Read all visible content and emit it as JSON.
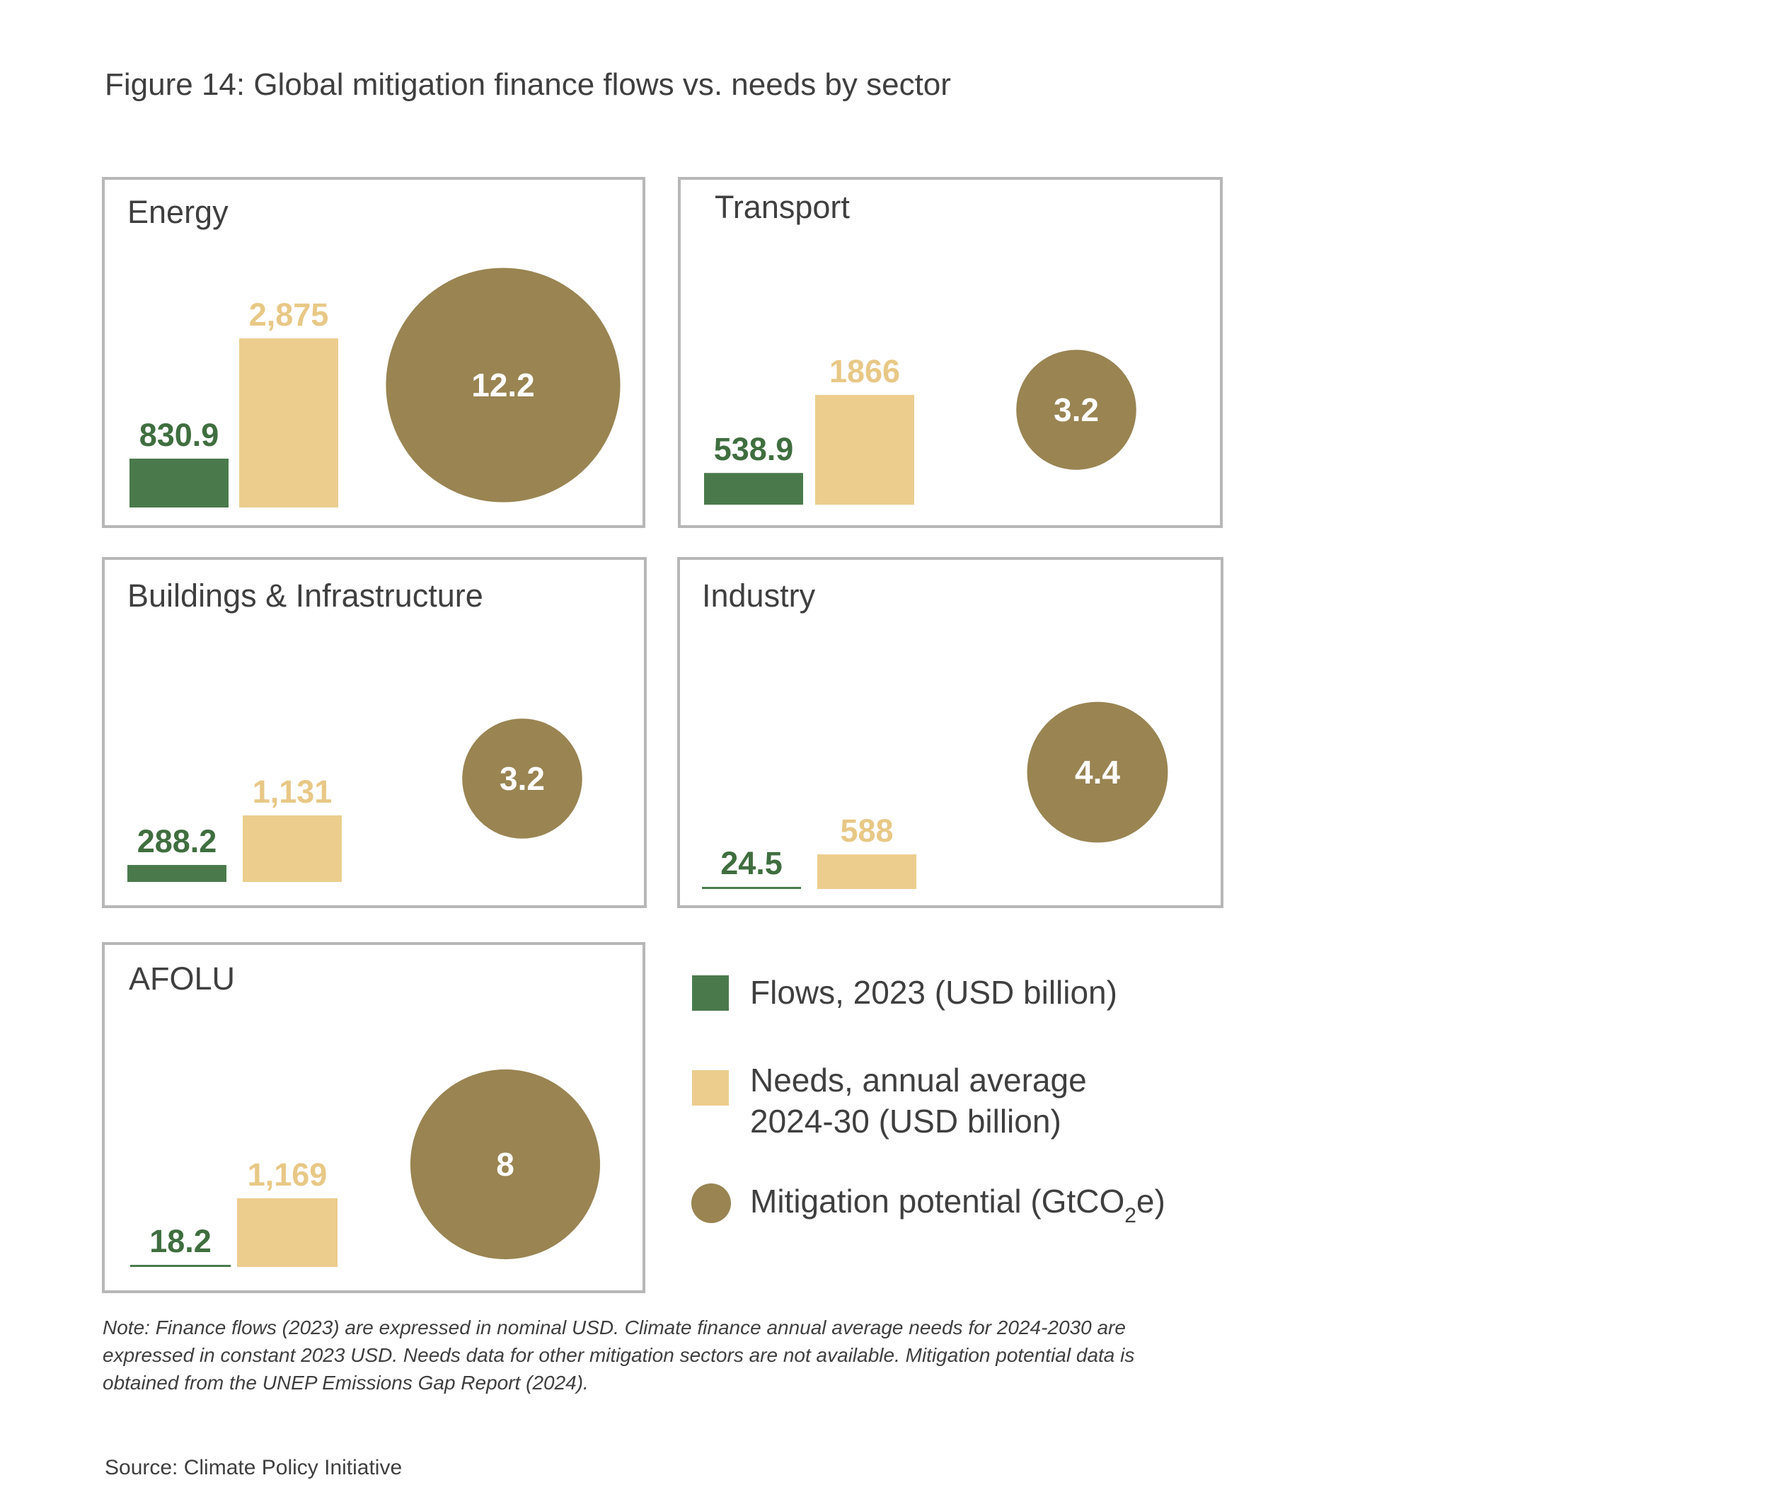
{
  "title": "Figure 14: Global mitigation finance flows vs. needs by sector",
  "chart_data": {
    "type": "bar",
    "series": [
      {
        "name": "Flows, 2023 (USD billion)",
        "key": "flows",
        "color": "#4a7a4c"
      },
      {
        "name": "Needs, annual average 2024-30 (USD billion)",
        "key": "needs",
        "color": "#eccd8e"
      },
      {
        "name": "Mitigation potential (GtCO2e)",
        "key": "potential",
        "color": "#998452"
      }
    ],
    "panels": [
      {
        "sector": "Energy",
        "flows": 830.9,
        "flows_label": "830.9",
        "needs": 2875,
        "needs_label": "2,875",
        "potential": 12.2,
        "potential_label": "12.2"
      },
      {
        "sector": "Transport",
        "flows": 538.9,
        "flows_label": "538.9",
        "needs": 1866,
        "needs_label": "1866",
        "potential": 3.2,
        "potential_label": "3.2"
      },
      {
        "sector": "Buildings & Infrastructure",
        "flows": 288.2,
        "flows_label": "288.2",
        "needs": 1131,
        "needs_label": "1,131",
        "potential": 3.2,
        "potential_label": "3.2"
      },
      {
        "sector": "Industry",
        "flows": 24.5,
        "flows_label": "24.5",
        "needs": 588,
        "needs_label": "588",
        "potential": 4.4,
        "potential_label": "4.4"
      },
      {
        "sector": "AFOLU",
        "flows": 18.2,
        "flows_label": "18.2",
        "needs": 1169,
        "needs_label": "1,169",
        "potential": 8,
        "potential_label": "8"
      }
    ]
  },
  "legend": {
    "flows_label": "Flows, 2023 (USD billion)",
    "needs_line1": "Needs, annual average",
    "needs_line2": "2024-30 (USD billion)",
    "potential_prefix": "Mitigation potential (GtCO",
    "potential_subscript": "2",
    "potential_suffix": "e)"
  },
  "note": {
    "line1": "Note: Finance flows (2023) are expressed in nominal USD. Climate finance annual average needs for 2024-2030 are",
    "line2": "expressed in constant 2023 USD. Needs data for other mitigation sectors are not available. Mitigation potential data is",
    "line3": "obtained from the UNEP Emissions Gap Report (2024)."
  },
  "source": "Source: Climate Policy Initiative"
}
